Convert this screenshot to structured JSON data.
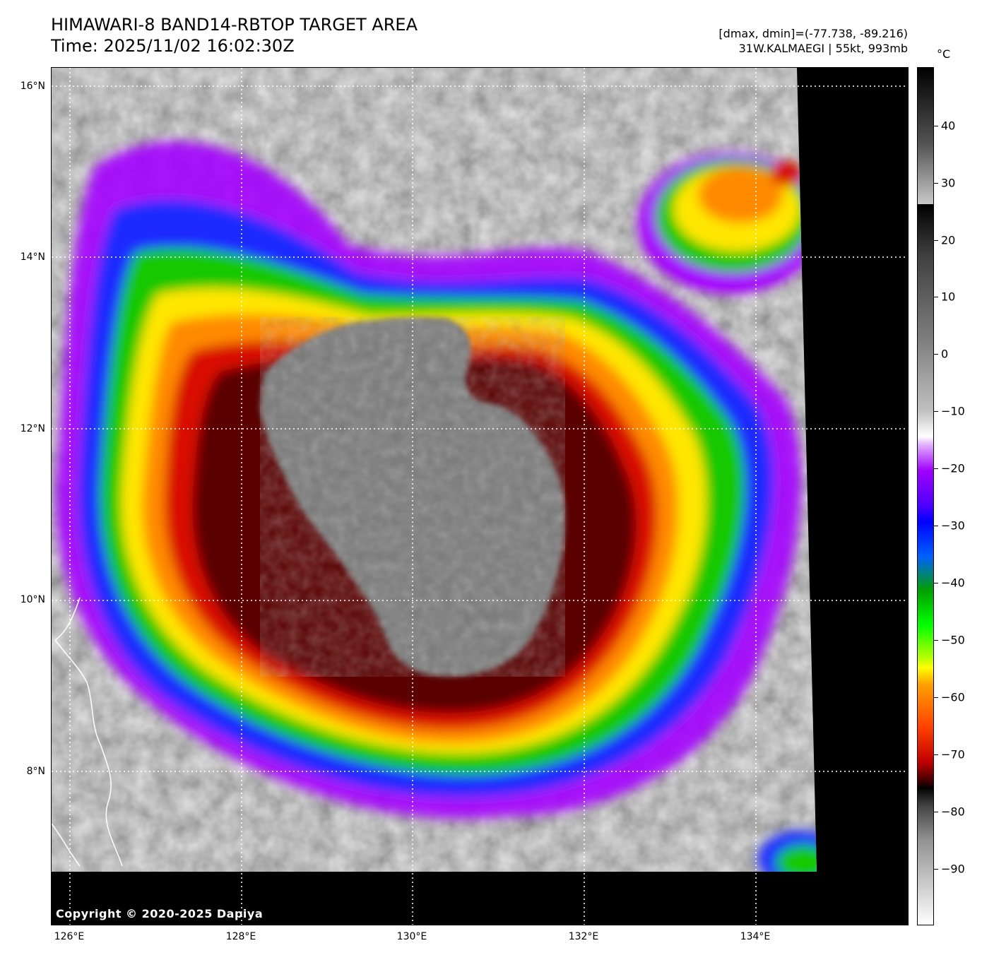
{
  "header": {
    "title_line1": "HIMAWARI-8 BAND14-RBTOP TARGET AREA",
    "title_line2": "Time: 2025/11/02 16:02:30Z",
    "range_text": "[dmax, dmin]=(-77.738, -89.216)",
    "storm_text": "31W.KALMAEGI | 55kt, 993mb"
  },
  "colorbar": {
    "unit": "°C",
    "tick_labels": [
      "40",
      "30",
      "20",
      "10",
      "0",
      "−10",
      "−20",
      "−30",
      "−40",
      "−50",
      "−60",
      "−70",
      "−80",
      "−90"
    ]
  },
  "map": {
    "lat_labels": [
      "16°N",
      "14°N",
      "12°N",
      "10°N",
      "8°N"
    ],
    "lon_labels": [
      "126°E",
      "128°E",
      "130°E",
      "132°E",
      "134°E"
    ],
    "copyright": "Copyright © 2020-2025 Dapiya",
    "colors": {
      "background": "#000000",
      "cold_core": "#7a7a7a",
      "dark_red": "#5a0000",
      "red": "#d81000",
      "orange": "#ff8a00",
      "yellow": "#ffe600",
      "green": "#18c800",
      "blue": "#1a2cff",
      "purple": "#a400ff",
      "cloud_gray": "#6e6e6e",
      "coast": "#ffffff"
    }
  }
}
